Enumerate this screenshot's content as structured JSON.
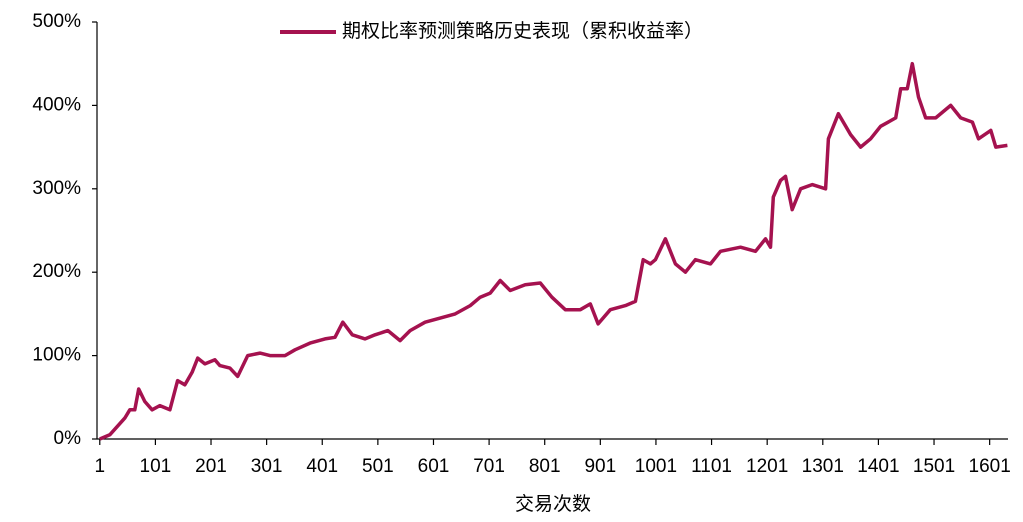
{
  "chart_data": {
    "type": "line",
    "xlabel": "交易次数",
    "series": [
      {
        "name": "期权比率预测策略历史表现（累积收益率）",
        "color": "#a5124f",
        "x": [
          1,
          19,
          46,
          55,
          64,
          71,
          82,
          95,
          109,
          127,
          141,
          154,
          167,
          177,
          190,
          208,
          217,
          235,
          249,
          267,
          289,
          307,
          334,
          352,
          379,
          406,
          424,
          438,
          455,
          478,
          496,
          519,
          541,
          559,
          586,
          613,
          640,
          667,
          685,
          703,
          721,
          739,
          766,
          793,
          814,
          838,
          865,
          883,
          897,
          919,
          946,
          964,
          978,
          991,
          1000,
          1018,
          1036,
          1054,
          1072,
          1099,
          1117,
          1153,
          1180,
          1198,
          1207,
          1212,
          1225,
          1234,
          1246,
          1261,
          1282,
          1306,
          1311,
          1329,
          1351,
          1369,
          1387,
          1405,
          1432,
          1441,
          1453,
          1462,
          1473,
          1486,
          1504,
          1531,
          1549,
          1570,
          1581,
          1603,
          1612,
          1633
        ],
        "values": [
          0,
          5,
          25,
          35,
          35,
          60,
          45,
          35,
          40,
          35,
          70,
          65,
          80,
          97,
          90,
          95,
          88,
          85,
          75,
          100,
          103,
          100,
          100,
          107,
          115,
          120,
          122,
          140,
          125,
          120,
          125,
          130,
          118,
          130,
          140,
          145,
          150,
          160,
          170,
          175,
          190,
          178,
          185,
          187,
          170,
          155,
          155,
          162,
          138,
          155,
          160,
          165,
          215,
          210,
          215,
          240,
          210,
          200,
          215,
          210,
          225,
          230,
          225,
          240,
          230,
          290,
          310,
          315,
          275,
          300,
          305,
          300,
          360,
          390,
          365,
          350,
          360,
          375,
          385,
          420,
          420,
          450,
          410,
          385,
          385,
          400,
          385,
          380,
          360,
          370,
          350,
          352
        ]
      }
    ],
    "xlim": [
      -4,
      1634
    ],
    "xticks": [
      1,
      101,
      201,
      301,
      401,
      501,
      601,
      701,
      801,
      901,
      1001,
      1101,
      1201,
      1301,
      1401,
      1501,
      1601
    ],
    "ylim": [
      0,
      500
    ],
    "yticks": [
      {
        "value": 0,
        "label": "0%"
      },
      {
        "value": 100,
        "label": "100%"
      },
      {
        "value": 200,
        "label": "200%"
      },
      {
        "value": 300,
        "label": "300%"
      },
      {
        "value": 400,
        "label": "400%"
      },
      {
        "value": 500,
        "label": "500%"
      }
    ],
    "legend": "top"
  }
}
